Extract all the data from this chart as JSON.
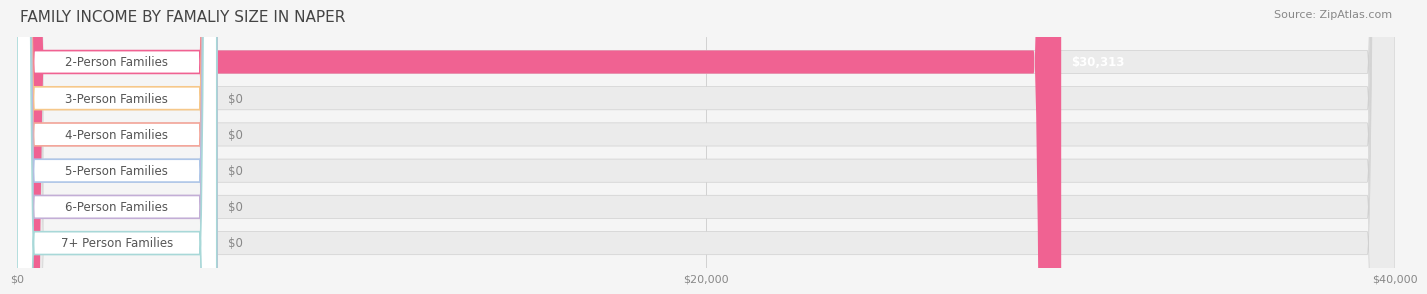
{
  "title": "FAMILY INCOME BY FAMALIY SIZE IN NAPER",
  "source": "Source: ZipAtlas.com",
  "categories": [
    "2-Person Families",
    "3-Person Families",
    "4-Person Families",
    "5-Person Families",
    "6-Person Families",
    "7+ Person Families"
  ],
  "values": [
    30313,
    0,
    0,
    0,
    0,
    0
  ],
  "bar_colors": [
    "#f06292",
    "#f6c88a",
    "#f4a69a",
    "#aec6e8",
    "#c3aed6",
    "#a8d8d8"
  ],
  "label_colors": [
    "#f06292",
    "#f6c88a",
    "#f4a69a",
    "#aec6e8",
    "#c3aed6",
    "#a8d8d8"
  ],
  "value_labels": [
    "$30,313",
    "$0",
    "$0",
    "$0",
    "$0",
    "$0"
  ],
  "xlim": [
    0,
    40000
  ],
  "xticks": [
    0,
    20000,
    40000
  ],
  "xticklabels": [
    "$0",
    "$20,000",
    "$40,000"
  ],
  "background_color": "#f5f5f5",
  "bar_background_color": "#ebebeb",
  "title_fontsize": 11,
  "source_fontsize": 8,
  "label_fontsize": 8.5,
  "value_fontsize": 8.5,
  "bar_height": 0.62
}
